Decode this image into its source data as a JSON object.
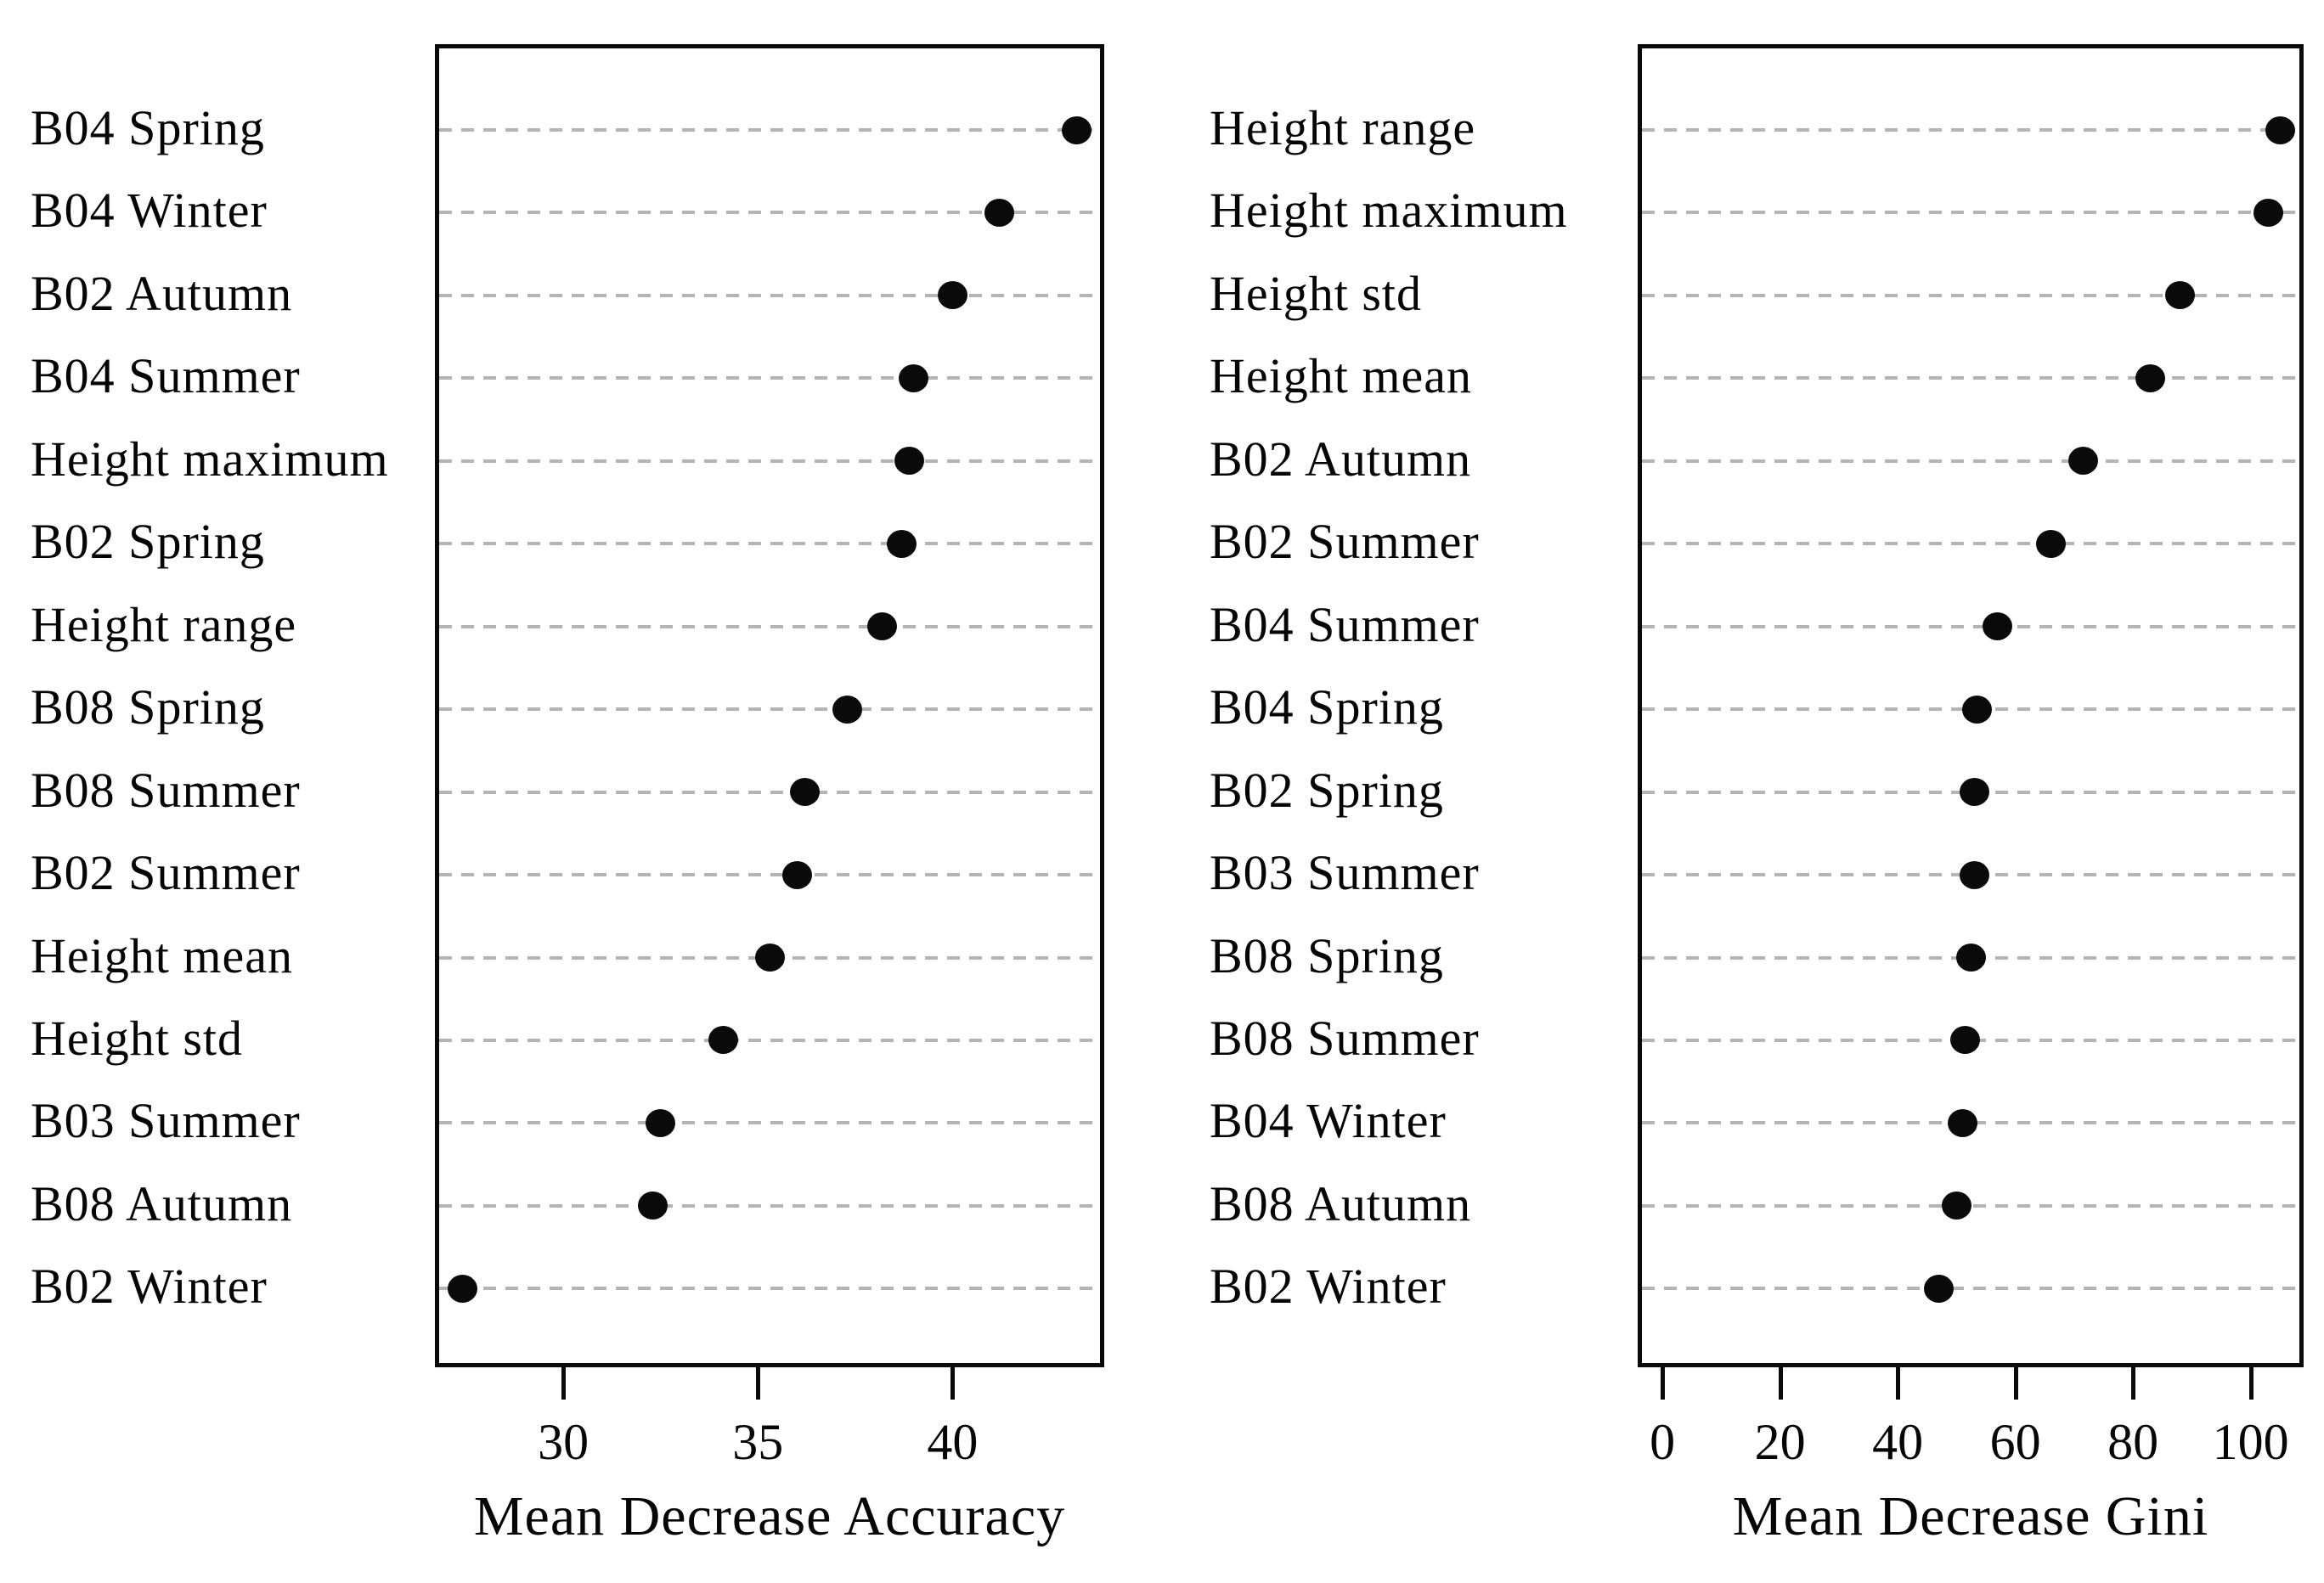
{
  "figure": {
    "background": "#ffffff",
    "text_color": "#050505",
    "dot_color": "#0a0a0a",
    "grid_color": "#b4b4b4",
    "border_color": "#0a0a0a"
  },
  "chart_data": [
    {
      "type": "scatter",
      "variant": "dot-plot-variable-importance",
      "title": "",
      "xlabel": "Mean Decrease Accuracy",
      "ylabel": "",
      "grid": "horizontal-dashed",
      "legend": "none",
      "xlim": [
        26.7,
        43.9
      ],
      "xticks": [
        "30",
        "35",
        "40"
      ],
      "xtick_values": [
        30,
        35,
        40
      ],
      "categories": [
        "B04 Spring",
        "B04 Winter",
        "B02 Autumn",
        "B04 Summer",
        "Height maximum",
        "B02 Spring",
        "Height range",
        "B08 Spring",
        "B08 Summer",
        "B02 Summer",
        "Height mean",
        "Height std",
        "B03 Summer",
        "B08 Autumn",
        "B02 Winter"
      ],
      "values": [
        43.2,
        41.2,
        40.0,
        39.0,
        38.9,
        38.7,
        38.2,
        37.3,
        36.2,
        36.0,
        35.3,
        34.1,
        32.5,
        32.3,
        27.4
      ]
    },
    {
      "type": "scatter",
      "variant": "dot-plot-variable-importance",
      "title": "",
      "xlabel": "Mean Decrease Gini",
      "ylabel": "",
      "grid": "horizontal-dashed",
      "legend": "none",
      "xlim": [
        -4.2,
        109.0
      ],
      "xticks": [
        "0",
        "20",
        "40",
        "60",
        "80",
        "100"
      ],
      "xtick_values": [
        0,
        20,
        40,
        60,
        80,
        100
      ],
      "categories": [
        "Height range",
        "Height maximum",
        "Height std",
        "Height mean",
        "B02 Autumn",
        "B02 Summer",
        "B04 Summer",
        "B04 Spring",
        "B02 Spring",
        "B03 Summer",
        "B08 Spring",
        "B08 Summer",
        "B04 Winter",
        "B08 Autumn",
        "B02 Winter"
      ],
      "values": [
        105,
        103,
        88,
        83,
        71.5,
        66,
        57,
        53.5,
        53,
        53,
        52.5,
        51.5,
        51,
        50,
        47
      ]
    }
  ]
}
